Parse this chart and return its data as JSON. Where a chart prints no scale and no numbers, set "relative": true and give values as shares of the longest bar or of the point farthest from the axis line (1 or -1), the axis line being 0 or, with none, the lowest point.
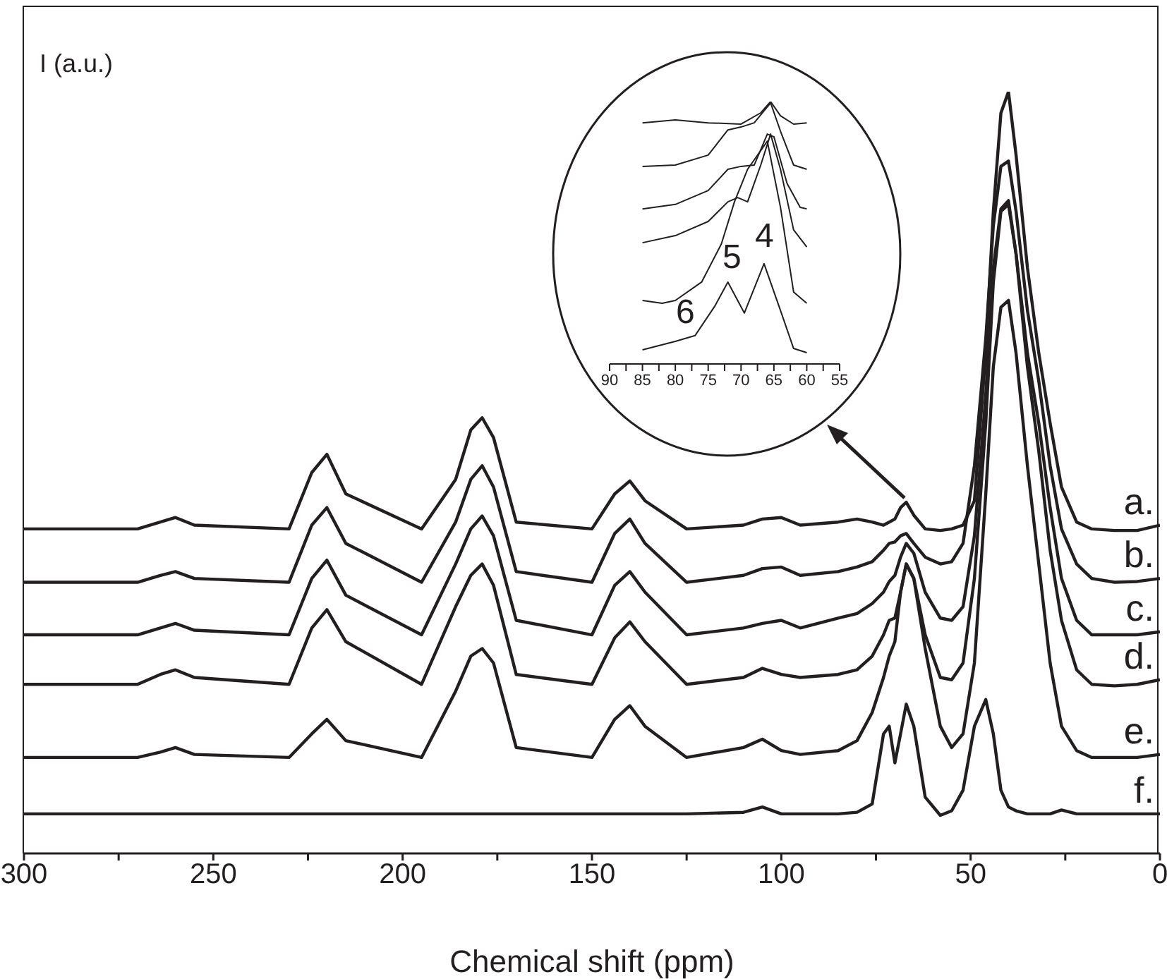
{
  "chart_data": [
    {
      "type": "line",
      "xlabel": "Chemical shift (ppm)",
      "ylabel": "I (a.u.)",
      "relative": true,
      "xlim": [
        300,
        0
      ],
      "xticks": [
        300,
        {
          "value": 275,
          "label": null
        },
        250,
        {
          "value": 225,
          "label": null
        },
        200,
        {
          "value": 175,
          "label": null
        },
        150,
        {
          "value": 125,
          "label": null
        },
        100,
        {
          "value": 75,
          "label": null
        },
        50,
        {
          "value": 25,
          "label": null
        },
        0
      ],
      "marker": "none",
      "line_style": "solid",
      "x": [
        300,
        270,
        264,
        260,
        255,
        230,
        224,
        220,
        215,
        195,
        186,
        182,
        179,
        176,
        170,
        150,
        144,
        140,
        136,
        125,
        110,
        105,
        100,
        95,
        85,
        80,
        76,
        73,
        71.5,
        70,
        68.5,
        67,
        65,
        62,
        58,
        55,
        52,
        49,
        46,
        44,
        42,
        40,
        38,
        35,
        32,
        29,
        26,
        22,
        18,
        12,
        6,
        0
      ],
      "series": [
        {
          "name": "a.",
          "color": "#231f20",
          "values": [
            0.426,
            0.426,
            0.435,
            0.441,
            0.431,
            0.426,
            0.5,
            0.524,
            0.472,
            0.426,
            0.491,
            0.556,
            0.572,
            0.546,
            0.435,
            0.426,
            0.472,
            0.489,
            0.463,
            0.426,
            0.431,
            0.439,
            0.441,
            0.431,
            0.435,
            0.439,
            0.435,
            0.431,
            0.435,
            0.439,
            0.454,
            0.461,
            0.444,
            0.426,
            0.424,
            0.426,
            0.431,
            0.463,
            0.657,
            0.843,
            0.972,
            1,
            0.917,
            0.769,
            0.657,
            0.565,
            0.481,
            0.435,
            0.426,
            0.424,
            0.424,
            0.431
          ]
        },
        {
          "name": "b.",
          "color": "#231f20",
          "values": [
            0.356,
            0.356,
            0.365,
            0.37,
            0.361,
            0.356,
            0.431,
            0.454,
            0.407,
            0.356,
            0.435,
            0.491,
            0.509,
            0.481,
            0.37,
            0.356,
            0.42,
            0.439,
            0.407,
            0.356,
            0.365,
            0.374,
            0.376,
            0.365,
            0.37,
            0.376,
            0.383,
            0.398,
            0.407,
            0.409,
            0.417,
            0.42,
            0.407,
            0.389,
            0.38,
            0.383,
            0.407,
            0.509,
            0.676,
            0.824,
            0.902,
            0.909,
            0.843,
            0.713,
            0.62,
            0.509,
            0.426,
            0.38,
            0.361,
            0.356,
            0.357,
            0.361
          ]
        },
        {
          "name": "c.",
          "color": "#231f20",
          "values": [
            0.287,
            0.287,
            0.296,
            0.302,
            0.293,
            0.287,
            0.361,
            0.385,
            0.339,
            0.287,
            0.38,
            0.426,
            0.443,
            0.417,
            0.306,
            0.287,
            0.352,
            0.37,
            0.343,
            0.287,
            0.296,
            0.302,
            0.306,
            0.296,
            0.309,
            0.315,
            0.328,
            0.343,
            0.357,
            0.365,
            0.389,
            0.407,
            0.394,
            0.343,
            0.309,
            0.306,
            0.324,
            0.417,
            0.602,
            0.769,
            0.846,
            0.857,
            0.787,
            0.657,
            0.565,
            0.454,
            0.361,
            0.306,
            0.287,
            0.287,
            0.287,
            0.291
          ]
        },
        {
          "name": "d.",
          "color": "#231f20",
          "values": [
            0.222,
            0.222,
            0.235,
            0.241,
            0.231,
            0.222,
            0.296,
            0.32,
            0.278,
            0.222,
            0.324,
            0.365,
            0.38,
            0.352,
            0.235,
            0.222,
            0.283,
            0.304,
            0.278,
            0.222,
            0.231,
            0.243,
            0.235,
            0.231,
            0.235,
            0.241,
            0.259,
            0.287,
            0.306,
            0.309,
            0.343,
            0.38,
            0.361,
            0.287,
            0.231,
            0.228,
            0.25,
            0.361,
            0.565,
            0.75,
            0.843,
            0.852,
            0.787,
            0.639,
            0.528,
            0.398,
            0.306,
            0.241,
            0.222,
            0.22,
            0.222,
            0.228
          ]
        },
        {
          "name": "e.",
          "color": "#231f20",
          "values": [
            0.126,
            0.126,
            0.133,
            0.139,
            0.13,
            0.126,
            0.157,
            0.176,
            0.148,
            0.126,
            0.213,
            0.259,
            0.269,
            0.25,
            0.139,
            0.126,
            0.176,
            0.194,
            0.167,
            0.126,
            0.139,
            0.15,
            0.135,
            0.13,
            0.135,
            0.148,
            0.185,
            0.231,
            0.259,
            0.278,
            0.343,
            0.38,
            0.361,
            0.269,
            0.167,
            0.139,
            0.157,
            0.25,
            0.472,
            0.639,
            0.717,
            0.726,
            0.657,
            0.509,
            0.38,
            0.25,
            0.167,
            0.135,
            0.126,
            0.126,
            0.126,
            0.13
          ]
        },
        {
          "name": "f.",
          "color": "#231f20",
          "values": [
            0.052,
            0.052,
            0.052,
            0.052,
            0.052,
            0.052,
            0.052,
            0.052,
            0.052,
            0.052,
            0.052,
            0.052,
            0.052,
            0.052,
            0.052,
            0.052,
            0.052,
            0.052,
            0.052,
            0.052,
            0.054,
            0.061,
            0.052,
            0.052,
            0.052,
            0.054,
            0.065,
            0.157,
            0.167,
            0.119,
            0.157,
            0.196,
            0.167,
            0.074,
            0.05,
            0.056,
            0.083,
            0.167,
            0.202,
            0.157,
            0.083,
            0.061,
            0.056,
            0.052,
            0.052,
            0.052,
            0.057,
            0.052,
            0.052,
            0.052,
            0.052,
            0.052
          ]
        }
      ]
    },
    {
      "type": "line",
      "relative": true,
      "xlim": [
        90,
        55
      ],
      "xticks": [
        90,
        {
          "value": 87.5,
          "label": null
        },
        85,
        {
          "value": 82.5,
          "label": null
        },
        80,
        {
          "value": 77.5,
          "label": null
        },
        75,
        {
          "value": 72.5,
          "label": null
        },
        70,
        {
          "value": 67.5,
          "label": null
        },
        65,
        {
          "value": 62.5,
          "label": null
        },
        60,
        {
          "value": 57.5,
          "label": null
        },
        55
      ],
      "marker": "none",
      "line_style": "solid",
      "annotations": [
        "4",
        "5",
        "6"
      ],
      "series": [
        {
          "color": "#231f20",
          "x": [
            85,
            80,
            75,
            70,
            67,
            65.5,
            64,
            62,
            60
          ],
          "values": [
            0.919,
            0.93,
            0.919,
            0.914,
            0.957,
            1,
            0.946,
            0.914,
            0.919
          ]
        },
        {
          "color": "#231f20",
          "x": [
            85,
            80,
            75,
            72,
            70,
            68,
            65.5,
            64,
            62,
            60
          ],
          "values": [
            0.753,
            0.758,
            0.796,
            0.892,
            0.903,
            0.919,
            0.995,
            0.887,
            0.758,
            0.742
          ]
        },
        {
          "color": "#231f20",
          "x": [
            85,
            80,
            75,
            72,
            70,
            68,
            66,
            65,
            63,
            61,
            60
          ],
          "values": [
            0.591,
            0.608,
            0.661,
            0.742,
            0.753,
            0.758,
            0.876,
            0.866,
            0.688,
            0.597,
            0.591
          ]
        },
        {
          "color": "#231f20",
          "x": [
            85,
            80,
            75,
            72,
            70.5,
            69,
            67,
            65.5,
            64,
            62,
            60
          ],
          "values": [
            0.462,
            0.489,
            0.543,
            0.618,
            0.634,
            0.618,
            0.758,
            0.876,
            0.742,
            0.511,
            0.446
          ]
        },
        {
          "color": "#231f20",
          "x": [
            85,
            82,
            80,
            76,
            73,
            71,
            69,
            66,
            64,
            62,
            60
          ],
          "values": [
            0.242,
            0.231,
            0.242,
            0.312,
            0.457,
            0.618,
            0.742,
            0.849,
            0.597,
            0.274,
            0.231
          ]
        },
        {
          "color": "#231f20",
          "x": [
            85,
            80,
            77,
            74,
            72,
            69.5,
            66.5,
            64,
            62,
            60
          ],
          "values": [
            0.054,
            0.086,
            0.108,
            0.22,
            0.312,
            0.194,
            0.382,
            0.204,
            0.059,
            0.043
          ]
        }
      ]
    }
  ]
}
